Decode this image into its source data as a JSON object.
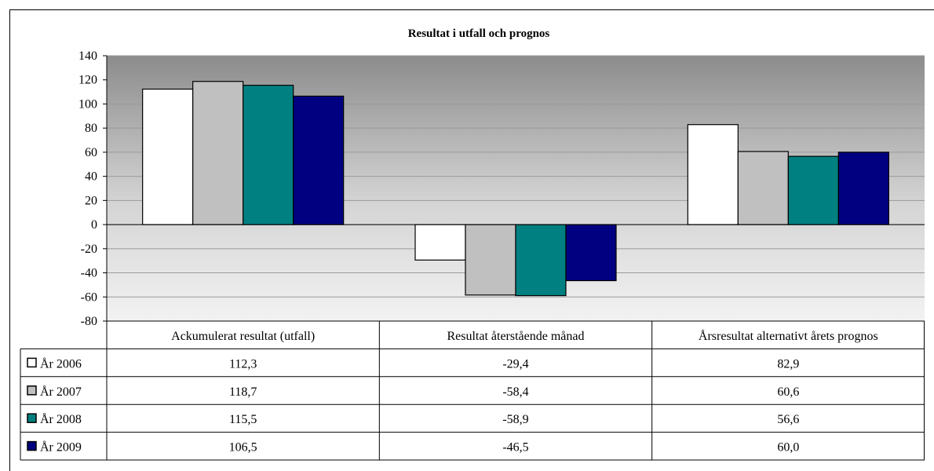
{
  "chart_data": {
    "type": "bar",
    "title": "Resultat i utfall och prognos",
    "categories": [
      "Ackumulerat resultat (utfall)",
      "Resultat återstående månad",
      "Årsresultat alternativt årets prognos"
    ],
    "series": [
      {
        "name": "År 2006",
        "color": "#ffffff",
        "values": [
          112.3,
          -29.4,
          82.9
        ],
        "labels": [
          "112,3",
          "-29,4",
          "82,9"
        ]
      },
      {
        "name": "År 2007",
        "color": "#c0c0c0",
        "values": [
          118.7,
          -58.4,
          60.6
        ],
        "labels": [
          "118,7",
          "-58,4",
          "60,6"
        ]
      },
      {
        "name": "År 2008",
        "color": "#008080",
        "values": [
          115.5,
          -58.9,
          56.6
        ],
        "labels": [
          "115,5",
          "-58,9",
          "56,6"
        ]
      },
      {
        "name": "År 2009",
        "color": "#000080",
        "values": [
          106.5,
          -46.5,
          60.0
        ],
        "labels": [
          "106,5",
          "-46,5",
          "60,0"
        ]
      }
    ],
    "yticks": [
      140,
      120,
      100,
      80,
      60,
      40,
      20,
      0,
      -20,
      -40,
      -60,
      -80
    ],
    "ylim": [
      -80,
      140
    ],
    "grid": true,
    "legend": "data table",
    "plot_background": "gradient gray"
  }
}
